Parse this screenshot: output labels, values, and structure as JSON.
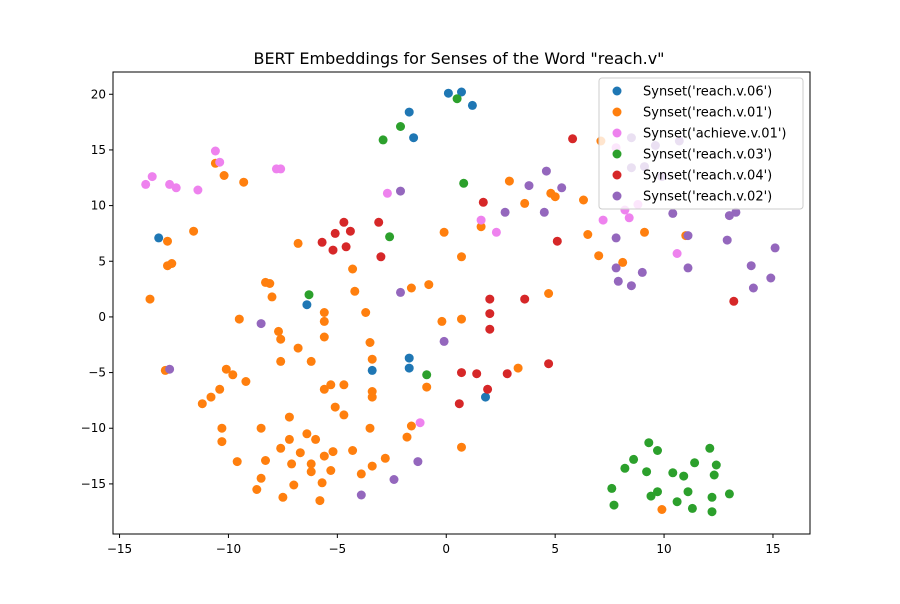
{
  "chart_data": {
    "type": "scatter",
    "title": "BERT Embeddings for Senses of the Word \"reach.v\"",
    "xlabel": "",
    "ylabel": "",
    "xlim": [
      -15.3,
      16.7
    ],
    "ylim": [
      -19.5,
      22.0
    ],
    "xticks": [
      -15,
      -10,
      -5,
      0,
      5,
      10,
      15
    ],
    "yticks": [
      -15,
      -10,
      -5,
      0,
      5,
      10,
      15,
      20
    ],
    "grid": false,
    "legend_position": "top-right",
    "series": [
      {
        "name": "Synset('reach.v.06')",
        "color": "#1f77b4",
        "points": [
          [
            0.1,
            20.1
          ],
          [
            0.7,
            20.2
          ],
          [
            1.2,
            19.0
          ],
          [
            -1.7,
            18.4
          ],
          [
            -1.5,
            16.1
          ],
          [
            -13.2,
            7.1
          ],
          [
            -6.4,
            1.1
          ],
          [
            -3.4,
            -4.8
          ],
          [
            -1.7,
            -3.7
          ],
          [
            -1.7,
            -4.6
          ],
          [
            1.8,
            -7.2
          ]
        ]
      },
      {
        "name": "Synset('reach.v.01')",
        "color": "#ff7f0e",
        "points": [
          [
            -13.6,
            1.6
          ],
          [
            -12.9,
            -4.8
          ],
          [
            -12.8,
            4.6
          ],
          [
            -12.6,
            4.8
          ],
          [
            -12.8,
            6.8
          ],
          [
            -11.6,
            7.7
          ],
          [
            -10.2,
            12.7
          ],
          [
            -9.3,
            12.1
          ],
          [
            -10.6,
            13.8
          ],
          [
            -11.2,
            -7.8
          ],
          [
            -10.8,
            -7.2
          ],
          [
            -10.4,
            -6.5
          ],
          [
            -10.1,
            -4.7
          ],
          [
            -9.8,
            -5.2
          ],
          [
            -9.2,
            -5.8
          ],
          [
            -9.5,
            -0.2
          ],
          [
            -10.3,
            -10.0
          ],
          [
            -10.3,
            -11.2
          ],
          [
            -9.6,
            -13.0
          ],
          [
            -8.5,
            -10.0
          ],
          [
            -8.3,
            -12.9
          ],
          [
            -8.5,
            -14.5
          ],
          [
            -8.7,
            -15.5
          ],
          [
            -8.3,
            3.1
          ],
          [
            -8.1,
            3.0
          ],
          [
            -8.0,
            1.8
          ],
          [
            -7.7,
            -1.3
          ],
          [
            -7.6,
            -2.0
          ],
          [
            -7.6,
            -4.0
          ],
          [
            -7.2,
            -9.0
          ],
          [
            -7.2,
            -11.0
          ],
          [
            -7.6,
            -11.8
          ],
          [
            -7.1,
            -13.2
          ],
          [
            -7.5,
            -16.2
          ],
          [
            -7.0,
            -15.1
          ],
          [
            -6.8,
            6.6
          ],
          [
            -6.8,
            -2.8
          ],
          [
            -6.2,
            -4.0
          ],
          [
            -6.7,
            -12.2
          ],
          [
            -6.4,
            -10.5
          ],
          [
            -6.0,
            -11.0
          ],
          [
            -6.2,
            -13.2
          ],
          [
            -6.2,
            -13.9
          ],
          [
            -5.8,
            -16.5
          ],
          [
            -5.7,
            -14.9
          ],
          [
            -5.6,
            -12.5
          ],
          [
            -5.3,
            -13.8
          ],
          [
            -5.2,
            -12.1
          ],
          [
            -5.6,
            0.4
          ],
          [
            -5.6,
            -0.4
          ],
          [
            -5.6,
            -1.8
          ],
          [
            -5.6,
            -6.5
          ],
          [
            -5.3,
            -6.1
          ],
          [
            -5.1,
            -8.1
          ],
          [
            -4.7,
            -6.1
          ],
          [
            -4.7,
            -8.8
          ],
          [
            -4.3,
            -12.0
          ],
          [
            -4.3,
            4.3
          ],
          [
            -4.2,
            2.3
          ],
          [
            -3.9,
            -14.1
          ],
          [
            -3.7,
            0.4
          ],
          [
            -3.5,
            -2.3
          ],
          [
            -3.4,
            -3.8
          ],
          [
            -3.4,
            -6.7
          ],
          [
            -3.4,
            -7.2
          ],
          [
            -3.5,
            -10.0
          ],
          [
            -3.4,
            -13.4
          ],
          [
            -2.8,
            -12.7
          ],
          [
            -1.6,
            2.6
          ],
          [
            -0.8,
            2.9
          ],
          [
            -1.8,
            -10.8
          ],
          [
            -1.6,
            -9.8
          ],
          [
            -0.9,
            -6.3
          ],
          [
            -0.2,
            -0.4
          ],
          [
            -0.1,
            7.6
          ],
          [
            0.7,
            5.4
          ],
          [
            0.7,
            -0.2
          ],
          [
            0.7,
            -11.7
          ],
          [
            1.6,
            8.1
          ],
          [
            2.9,
            12.2
          ],
          [
            3.6,
            10.2
          ],
          [
            3.3,
            -4.6
          ],
          [
            4.7,
            2.1
          ],
          [
            4.8,
            11.1
          ],
          [
            5.0,
            10.8
          ],
          [
            6.3,
            10.5
          ],
          [
            6.5,
            7.4
          ],
          [
            7.0,
            5.5
          ],
          [
            7.1,
            15.8
          ],
          [
            8.1,
            4.9
          ],
          [
            9.1,
            7.6
          ],
          [
            9.9,
            -17.3
          ],
          [
            11.0,
            7.3
          ]
        ]
      },
      {
        "name": "Synset('achieve.v.01')",
        "color": "#ee82ee",
        "points": [
          [
            -13.8,
            11.9
          ],
          [
            -13.5,
            12.6
          ],
          [
            -12.7,
            11.9
          ],
          [
            -12.4,
            11.6
          ],
          [
            -11.4,
            11.4
          ],
          [
            -10.6,
            14.9
          ],
          [
            -10.4,
            13.9
          ],
          [
            -7.8,
            13.3
          ],
          [
            -7.6,
            13.3
          ],
          [
            -2.7,
            11.1
          ],
          [
            -1.2,
            -9.5
          ],
          [
            1.6,
            8.7
          ],
          [
            2.3,
            7.6
          ],
          [
            7.2,
            8.7
          ],
          [
            7.8,
            15.2
          ],
          [
            8.2,
            9.6
          ],
          [
            8.4,
            8.9
          ],
          [
            8.8,
            10.1
          ],
          [
            10.6,
            5.7
          ]
        ]
      },
      {
        "name": "Synset('reach.v.03')",
        "color": "#2ca02c",
        "points": [
          [
            0.5,
            19.6
          ],
          [
            -2.1,
            17.1
          ],
          [
            -2.9,
            15.9
          ],
          [
            0.8,
            12.0
          ],
          [
            -2.6,
            7.2
          ],
          [
            -6.3,
            2.0
          ],
          [
            -0.9,
            -5.2
          ],
          [
            7.6,
            -15.4
          ],
          [
            7.7,
            -16.9
          ],
          [
            8.2,
            -13.6
          ],
          [
            8.6,
            -12.8
          ],
          [
            9.2,
            -13.9
          ],
          [
            9.4,
            -16.1
          ],
          [
            9.3,
            -11.3
          ],
          [
            9.7,
            -15.7
          ],
          [
            9.7,
            -12.0
          ],
          [
            10.4,
            -14.0
          ],
          [
            10.6,
            -16.6
          ],
          [
            10.9,
            -14.3
          ],
          [
            11.1,
            -15.7
          ],
          [
            11.3,
            -17.2
          ],
          [
            11.4,
            -13.1
          ],
          [
            12.1,
            -11.8
          ],
          [
            12.2,
            -16.2
          ],
          [
            12.2,
            -17.5
          ],
          [
            12.3,
            -14.2
          ],
          [
            12.4,
            -13.3
          ],
          [
            13.0,
            -15.9
          ]
        ]
      },
      {
        "name": "Synset('reach.v.04')",
        "color": "#d62728",
        "points": [
          [
            -4.7,
            8.5
          ],
          [
            -4.4,
            7.7
          ],
          [
            -5.1,
            7.5
          ],
          [
            -5.7,
            6.7
          ],
          [
            -5.2,
            6.0
          ],
          [
            -4.6,
            6.3
          ],
          [
            -3.1,
            8.5
          ],
          [
            -3.0,
            5.4
          ],
          [
            1.7,
            10.3
          ],
          [
            2.0,
            1.6
          ],
          [
            2.0,
            0.3
          ],
          [
            2.0,
            -1.1
          ],
          [
            0.7,
            -5.0
          ],
          [
            1.4,
            -5.1
          ],
          [
            0.6,
            -7.8
          ],
          [
            1.9,
            -6.5
          ],
          [
            2.8,
            -5.1
          ],
          [
            3.6,
            1.6
          ],
          [
            4.7,
            -4.2
          ],
          [
            5.1,
            6.8
          ],
          [
            5.8,
            16.0
          ],
          [
            13.2,
            1.4
          ]
        ]
      },
      {
        "name": "Synset('reach.v.02')",
        "color": "#9467bd",
        "points": [
          [
            -8.5,
            -0.6
          ],
          [
            -12.7,
            -4.7
          ],
          [
            -2.1,
            2.2
          ],
          [
            -2.1,
            11.3
          ],
          [
            -0.1,
            -2.2
          ],
          [
            -1.3,
            -13.0
          ],
          [
            -2.4,
            -14.6
          ],
          [
            -3.9,
            -16.0
          ],
          [
            2.7,
            9.4
          ],
          [
            3.8,
            11.8
          ],
          [
            4.5,
            9.4
          ],
          [
            4.6,
            13.1
          ],
          [
            5.3,
            11.6
          ],
          [
            7.8,
            4.4
          ],
          [
            7.8,
            7.1
          ],
          [
            7.9,
            3.2
          ],
          [
            8.5,
            2.8
          ],
          [
            8.5,
            13.4
          ],
          [
            8.5,
            16.1
          ],
          [
            9.0,
            4.0
          ],
          [
            9.1,
            13.5
          ],
          [
            9.6,
            15.4
          ],
          [
            9.9,
            12.6
          ],
          [
            10.4,
            9.3
          ],
          [
            10.7,
            15.8
          ],
          [
            11.1,
            7.3
          ],
          [
            11.1,
            4.4
          ],
          [
            12.9,
            6.9
          ],
          [
            13.0,
            9.1
          ],
          [
            13.3,
            9.4
          ],
          [
            14.0,
            4.6
          ],
          [
            14.1,
            2.6
          ],
          [
            14.9,
            3.5
          ],
          [
            15.1,
            6.2
          ]
        ]
      }
    ]
  }
}
